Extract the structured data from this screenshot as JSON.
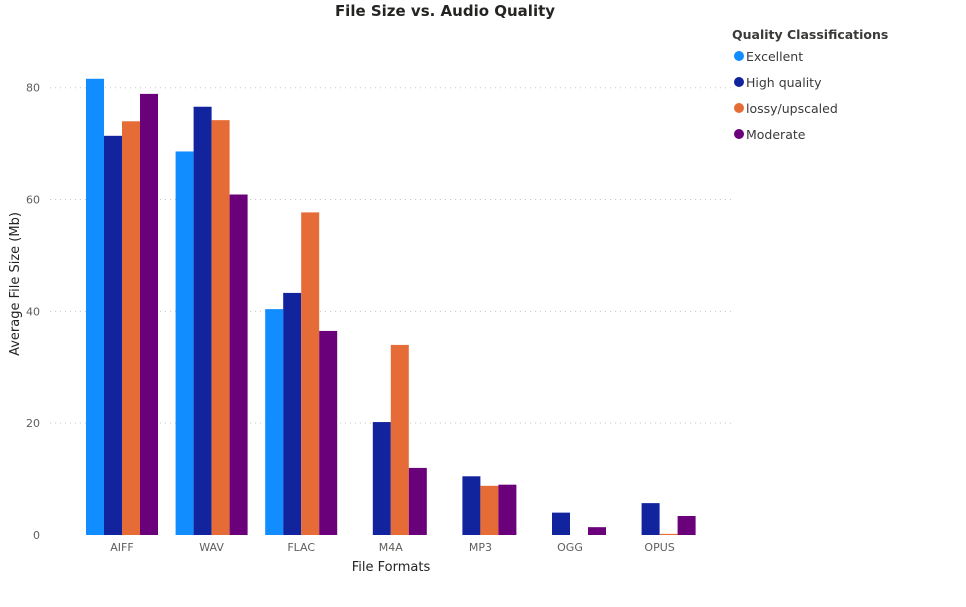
{
  "chart_data": {
    "type": "bar",
    "title": "File Size vs. Audio Quality",
    "xlabel": "File Formats",
    "ylabel": "Average File Size (Mb)",
    "categories": [
      "AIFF",
      "WAV",
      "FLAC",
      "M4A",
      "MP3",
      "OGG",
      "OPUS"
    ],
    "ylim": [
      0,
      88
    ],
    "yticks": [
      0,
      20,
      40,
      60,
      80
    ],
    "grid": true,
    "legend_title": "Quality Classifications",
    "legend_position": "top-right",
    "series": [
      {
        "name": "Excellent",
        "color": "#118DFF",
        "values": [
          81.6,
          68.6,
          40.4,
          null,
          null,
          null,
          null
        ]
      },
      {
        "name": "High quality",
        "color": "#12239E",
        "values": [
          71.4,
          76.6,
          43.3,
          20.2,
          10.5,
          4.0,
          5.7
        ]
      },
      {
        "name": "lossy/upscaled",
        "color": "#E66C37",
        "values": [
          74.0,
          74.2,
          57.7,
          34.0,
          8.8,
          null,
          0.2
        ]
      },
      {
        "name": "Moderate",
        "color": "#6B007B",
        "values": [
          78.9,
          60.9,
          36.5,
          12.0,
          9.0,
          1.4,
          3.4
        ]
      }
    ]
  }
}
